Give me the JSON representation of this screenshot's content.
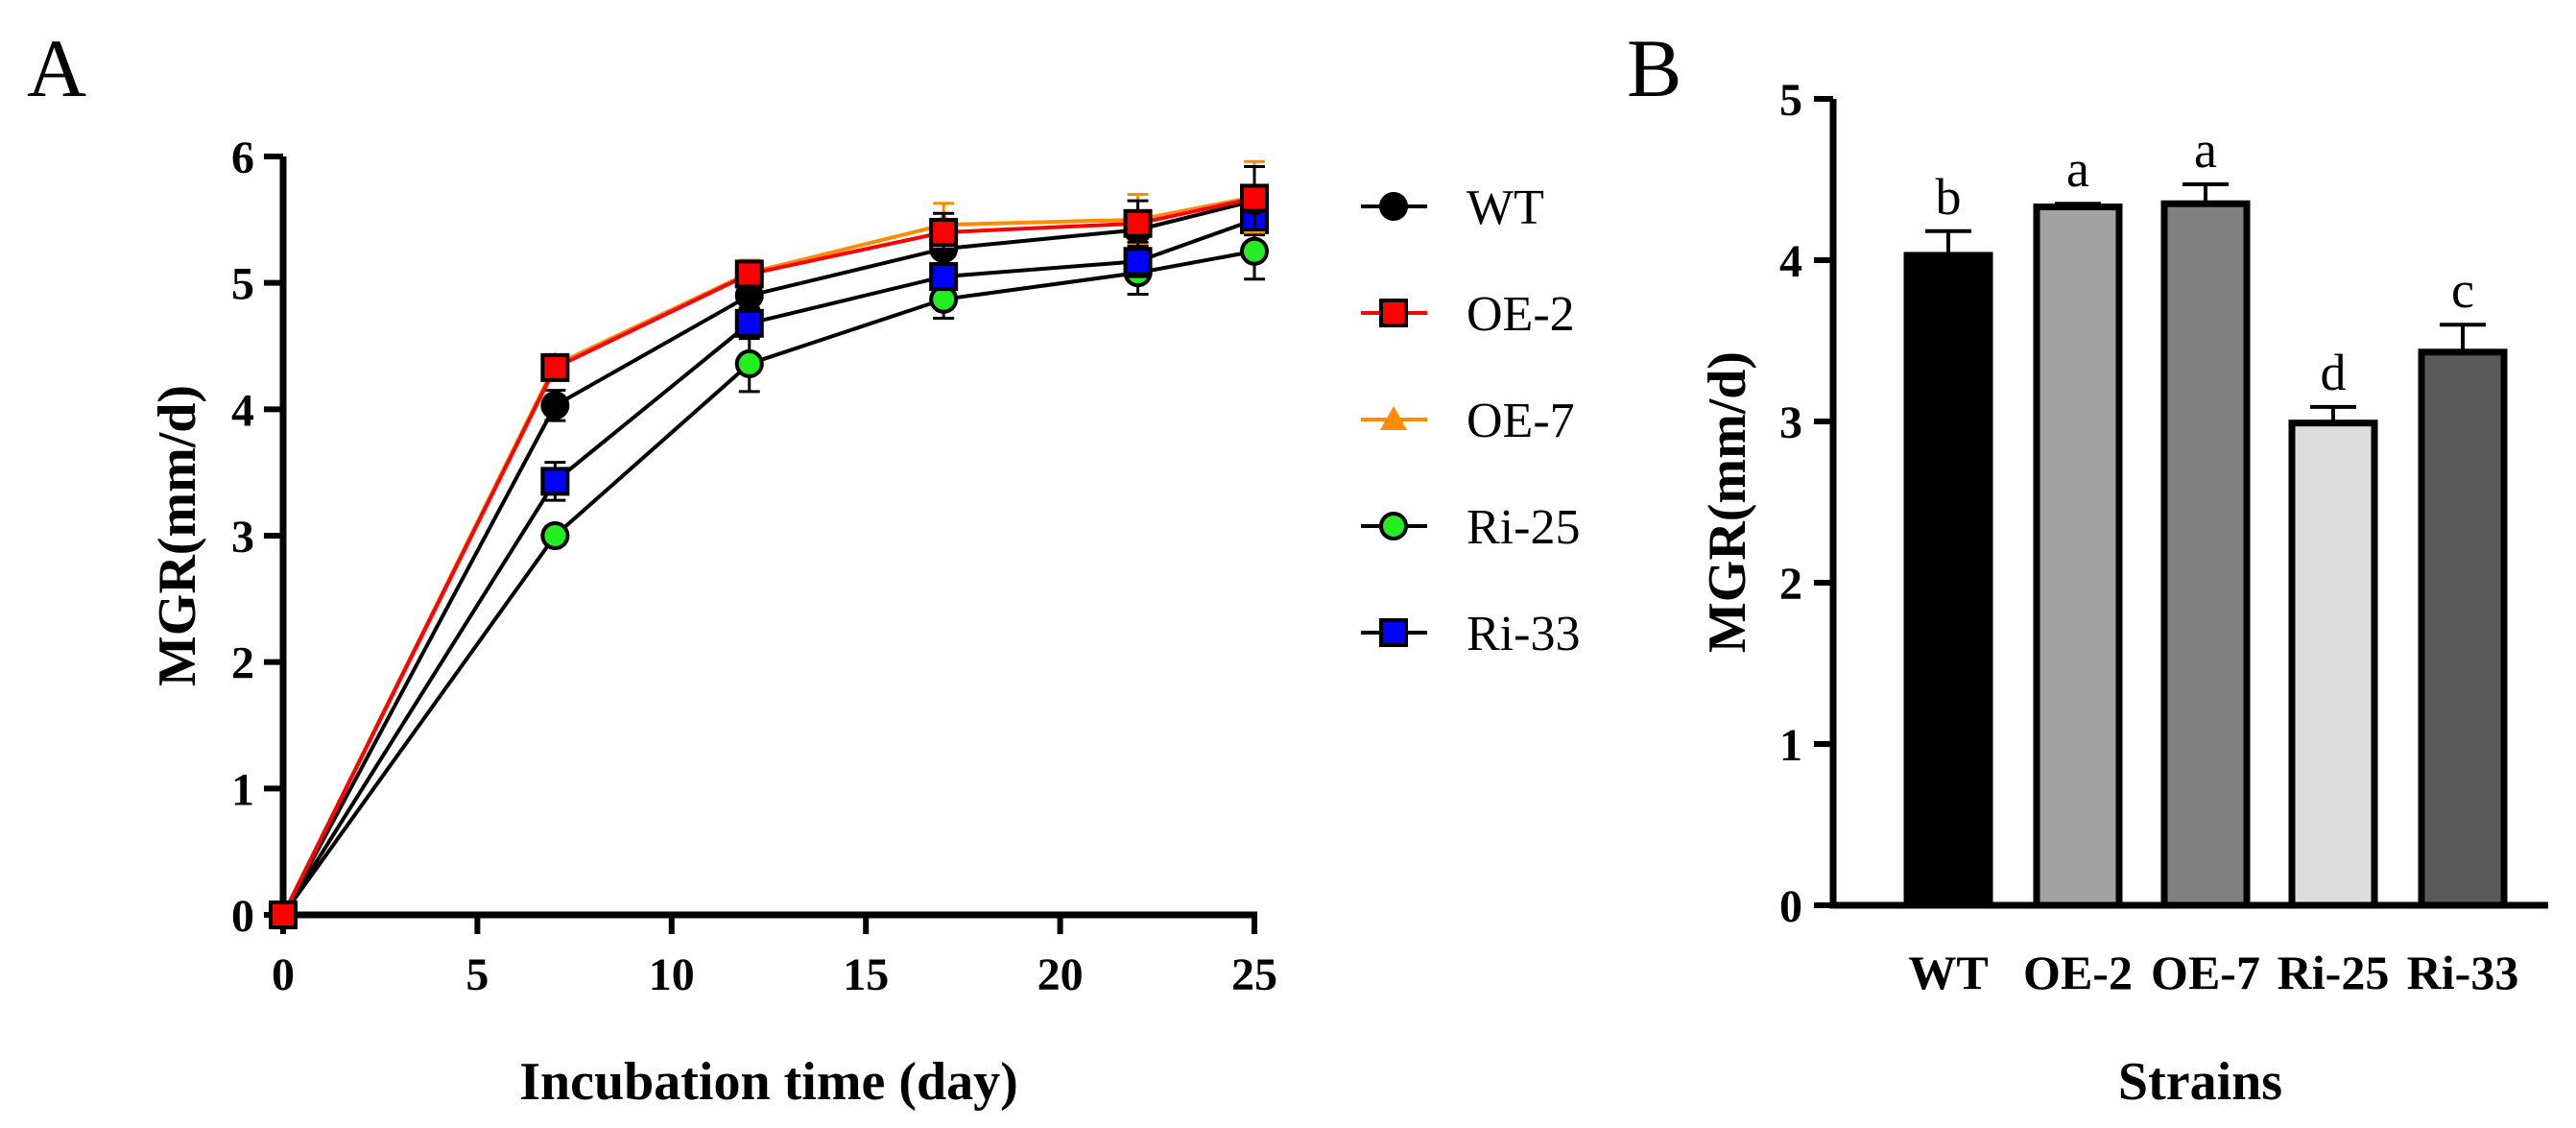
{
  "chart_data": [
    {
      "panel": "A",
      "type": "line",
      "xlabel": "Incubation time (day)",
      "ylabel": "MGR(mm/d)",
      "xlim": [
        0,
        25
      ],
      "ylim": [
        0,
        6
      ],
      "xticks": [
        0,
        5,
        10,
        15,
        20,
        25
      ],
      "yticks": [
        0,
        1,
        2,
        3,
        4,
        5,
        6
      ],
      "x": [
        0,
        7,
        12,
        17,
        22,
        25
      ],
      "series": [
        {
          "name": "WT",
          "values": [
            0,
            4.03,
            4.9,
            5.27,
            5.42,
            5.65
          ],
          "errors": [
            0,
            0.12,
            0.1,
            0.12,
            0.1,
            0.08
          ],
          "line_color": "#000000",
          "fill": "#000000",
          "marker": "circle"
        },
        {
          "name": "OE-2",
          "values": [
            0,
            4.33,
            5.07,
            5.4,
            5.47,
            5.67
          ],
          "errors": [
            0,
            0.06,
            0.1,
            0.15,
            0.18,
            0.25
          ],
          "line_color": "#ff0000",
          "fill": "#ff0000",
          "marker": "square"
        },
        {
          "name": "OE-7",
          "values": [
            0,
            4.35,
            5.08,
            5.46,
            5.5,
            5.68
          ],
          "errors": [
            0,
            0.05,
            0.1,
            0.17,
            0.2,
            0.28
          ],
          "line_color": "#ff8c00",
          "fill": "#ff8c00",
          "marker": "triangle"
        },
        {
          "name": "Ri-25",
          "values": [
            0,
            3.0,
            4.36,
            4.87,
            5.08,
            5.25
          ],
          "errors": [
            0,
            0.07,
            0.22,
            0.15,
            0.17,
            0.22
          ],
          "line_color": "#000000",
          "fill": "#22ee22",
          "marker": "circle"
        },
        {
          "name": "Ri-33",
          "values": [
            0,
            3.43,
            4.68,
            5.05,
            5.17,
            5.5
          ],
          "errors": [
            0,
            0.15,
            0.12,
            0.1,
            0.12,
            0.12
          ],
          "line_color": "#000000",
          "fill": "#0000ff",
          "marker": "square"
        }
      ]
    },
    {
      "panel": "B",
      "type": "bar",
      "xlabel": "Strains",
      "ylabel": "MGR(mm/d)",
      "ylim": [
        0,
        5
      ],
      "yticks": [
        0,
        1,
        2,
        3,
        4,
        5
      ],
      "categories": [
        "WT",
        "OE-2",
        "OE-7",
        "Ri-25",
        "Ri-33"
      ],
      "values": [
        4.03,
        4.33,
        4.35,
        2.99,
        3.43
      ],
      "errors": [
        0.15,
        0.02,
        0.12,
        0.1,
        0.17
      ],
      "significance": [
        "b",
        "a",
        "a",
        "d",
        "c"
      ],
      "colors": [
        "#000000",
        "#a2a2a2",
        "#808080",
        "#dcdcdc",
        "#5a5a5a"
      ]
    }
  ]
}
